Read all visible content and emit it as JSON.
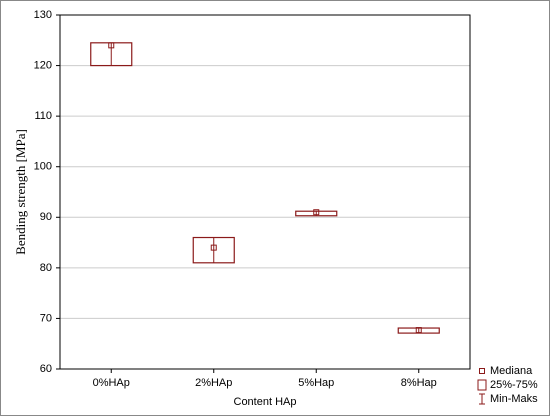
{
  "chart_data": {
    "type": "box",
    "x_label": "Content HAp",
    "y_label": "Bending strength [MPa]",
    "categories": [
      "0%HAp",
      "2%HAp",
      "5%Hap",
      "8%Hap"
    ],
    "median": [
      124,
      84,
      91,
      67.7
    ],
    "q1": [
      120,
      81,
      90.3,
      67.1
    ],
    "q3": [
      124.5,
      86,
      91.2,
      68.1
    ],
    "min": [
      120,
      81,
      90.3,
      67.1
    ],
    "max": [
      124.5,
      86,
      91.2,
      68.1
    ],
    "color": "#8b1a1a",
    "ylim": [
      60,
      130
    ],
    "yticks": [
      60,
      70,
      80,
      90,
      100,
      110,
      120,
      130
    ],
    "grid": true,
    "legend": {
      "position": "bottom-right",
      "entries": [
        "Mediana",
        "25%-75%",
        "Min-Maks"
      ]
    }
  }
}
